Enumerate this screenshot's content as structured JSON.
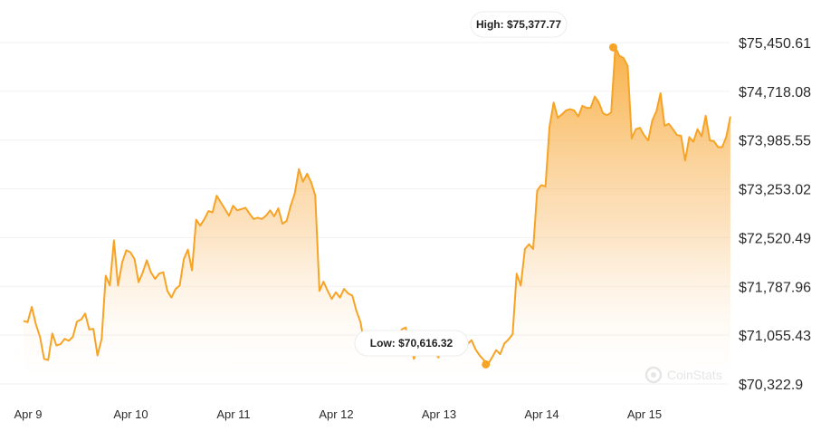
{
  "chart_data": {
    "type": "area",
    "x_tick_labels": [
      "Apr 9",
      "Apr 10",
      "Apr 11",
      "Apr 12",
      "Apr 13",
      "Apr 14",
      "Apr 15"
    ],
    "y_tick_labels": [
      "$75,450.61",
      "$74,718.08",
      "$73,985.55",
      "$73,253.02",
      "$72,520.49",
      "$71,787.96",
      "$71,055.43",
      "$70,322.9"
    ],
    "y_ticks": [
      75450.61,
      74718.08,
      73985.55,
      73253.02,
      72520.49,
      71787.96,
      71055.43,
      70322.9
    ],
    "ylim": [
      70322.9,
      75450.61
    ],
    "x_range_days": [
      0,
      6.9
    ],
    "high": {
      "label": "High: $75,377.77",
      "value": 75377.77,
      "x": 5.74
    },
    "low": {
      "label": "Low: $70,616.32",
      "value": 70616.32,
      "x": 4.5
    },
    "grid": true,
    "series": [
      {
        "color": "#f7a325",
        "x": [
          0.0,
          0.04,
          0.08,
          0.12,
          0.16,
          0.2,
          0.24,
          0.28,
          0.32,
          0.36,
          0.4,
          0.44,
          0.48,
          0.52,
          0.56,
          0.6,
          0.64,
          0.68,
          0.72,
          0.76,
          0.8,
          0.84,
          0.88,
          0.92,
          0.96,
          1.0,
          1.04,
          1.08,
          1.12,
          1.16,
          1.2,
          1.24,
          1.28,
          1.32,
          1.36,
          1.4,
          1.44,
          1.48,
          1.52,
          1.56,
          1.6,
          1.64,
          1.68,
          1.72,
          1.76,
          1.8,
          1.84,
          1.88,
          1.92,
          1.96,
          2.0,
          2.04,
          2.08,
          2.12,
          2.16,
          2.2,
          2.24,
          2.28,
          2.32,
          2.36,
          2.4,
          2.44,
          2.48,
          2.52,
          2.56,
          2.6,
          2.64,
          2.68,
          2.72,
          2.76,
          2.8,
          2.84,
          2.88,
          2.92,
          2.96,
          3.0,
          3.04,
          3.08,
          3.12,
          3.16,
          3.2,
          3.24,
          3.28,
          3.32,
          3.36,
          3.4,
          3.44,
          3.48,
          3.52,
          3.56,
          3.6,
          3.64,
          3.68,
          3.72,
          3.76,
          3.8,
          3.84,
          3.88,
          3.92,
          3.96,
          4.0,
          4.04,
          4.08,
          4.12,
          4.16,
          4.2,
          4.24,
          4.28,
          4.32,
          4.36,
          4.4,
          4.44,
          4.48,
          4.52,
          4.56,
          4.6,
          4.64,
          4.68,
          4.72,
          4.76,
          4.8,
          4.84,
          4.88,
          4.92,
          4.96,
          5.0,
          5.04,
          5.08,
          5.12,
          5.16,
          5.2,
          5.24,
          5.28,
          5.32,
          5.36,
          5.4,
          5.44,
          5.48,
          5.52,
          5.56,
          5.6,
          5.64,
          5.68,
          5.72,
          5.76,
          5.8,
          5.84,
          5.88,
          5.92,
          5.96,
          6.0,
          6.04,
          6.08,
          6.12,
          6.16,
          6.2,
          6.24,
          6.28,
          6.32,
          6.36,
          6.4,
          6.44,
          6.48,
          6.52,
          6.56,
          6.6,
          6.64,
          6.68,
          6.72,
          6.76,
          6.8,
          6.84,
          6.88
        ],
        "values": [
          71270,
          71250,
          71480,
          71220,
          71030,
          70700,
          70680,
          71080,
          70900,
          70920,
          71000,
          70970,
          71030,
          71260,
          71290,
          71380,
          71140,
          71150,
          70750,
          71000,
          71950,
          71800,
          72480,
          71800,
          72150,
          72330,
          72300,
          72200,
          71850,
          72000,
          72180,
          72000,
          71900,
          71980,
          72000,
          71720,
          71620,
          71750,
          71800,
          72200,
          72340,
          72030,
          72790,
          72700,
          72800,
          72920,
          72900,
          73150,
          73050,
          72950,
          72850,
          73000,
          72930,
          72950,
          72970,
          72880,
          72800,
          72820,
          72800,
          72850,
          72930,
          72840,
          72960,
          72730,
          72770,
          73000,
          73180,
          73550,
          73360,
          73480,
          73350,
          73150,
          71720,
          71860,
          71720,
          71600,
          71700,
          71620,
          71750,
          71680,
          71650,
          71420,
          71250,
          70900,
          70990,
          71030,
          70980,
          71040,
          71050,
          70910,
          71000,
          71050,
          71140,
          71170,
          70920,
          70700,
          70880,
          71000,
          70950,
          70850,
          70780,
          70720,
          70890,
          70870,
          70780,
          70830,
          70800,
          70870,
          70920,
          70980,
          70840,
          70750,
          70680,
          70616,
          70720,
          70830,
          70770,
          70930,
          70990,
          71070,
          71980,
          71800,
          72350,
          72420,
          72350,
          73230,
          73310,
          73290,
          74190,
          74550,
          74320,
          74370,
          74430,
          74450,
          74430,
          74340,
          74500,
          74470,
          74470,
          74640,
          74550,
          74390,
          74360,
          74400,
          75377,
          75250,
          75220,
          75100,
          74010,
          74150,
          74170,
          74060,
          73980,
          74280,
          74420,
          74690,
          74200,
          74230,
          74150,
          74060,
          74050,
          73680,
          74030,
          73960,
          74150,
          74040,
          74350,
          73980,
          73970,
          73880,
          73880,
          74030,
          74340
        ]
      }
    ]
  },
  "watermark": {
    "text": "CoinStats",
    "icon": "coinstats-logo-icon"
  }
}
